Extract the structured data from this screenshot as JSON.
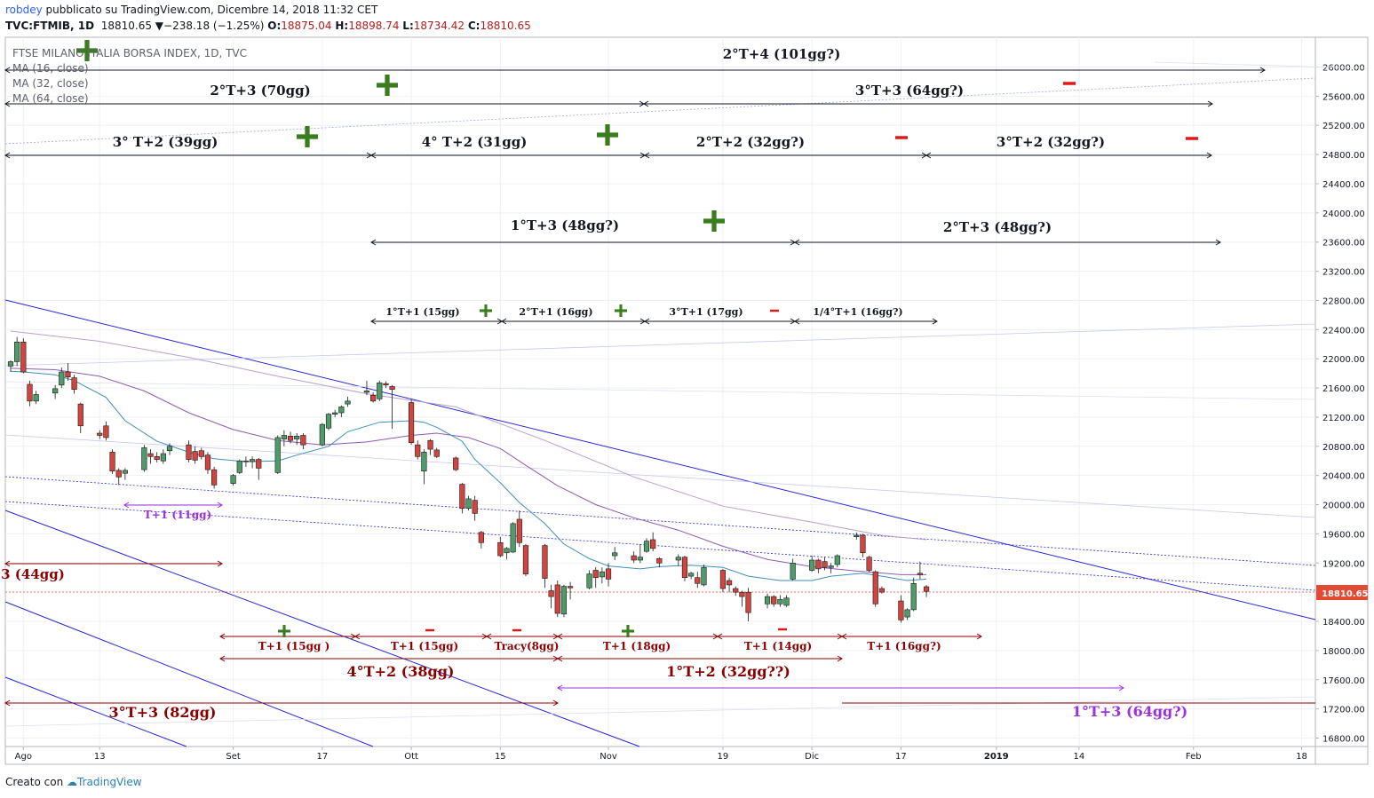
{
  "header": {
    "user": "robdey",
    "publish_text": " pubblicato su TradingView.com, Dicembre 14, 2018 11:32 CET",
    "symbol": "TVC:FTMIB, 1D",
    "last": "18810.65",
    "change_arrow": "▼",
    "change": "−238.18 (−1.25%)",
    "open_label": "O:",
    "open": "18875.04",
    "high_label": "H:",
    "high": "18898.74",
    "low_label": "L:",
    "low": "18734.42",
    "close_label": "C:",
    "close": "18810.65"
  },
  "legend": {
    "title": "FTSE MILANO ITALIA BORSA INDEX, 1D, TVC",
    "ma16": "MA (16, close)",
    "ma32": "MA (32, close)",
    "ma64": "MA (64, close)"
  },
  "footer": {
    "created_with": "Creato con",
    "brand": "TradingView"
  },
  "colors": {
    "up": "#4f9b6a",
    "down": "#d0453f",
    "ma16": "#3f8fb8",
    "ma32": "#8e5bb0",
    "ma64": "#b9a0c8",
    "channel": "#2727d6",
    "annotation_black": "#131722",
    "annotation_red": "#8b0000",
    "annotation_purple": "#9b30e0",
    "plus": "#3a7d1f",
    "minus": "#e01818",
    "price_badge": "#e24a34"
  },
  "chart_data": {
    "type": "candlestick",
    "title": "FTSE MILANO ITALIA BORSA INDEX, 1D, TVC",
    "ylim": [
      16700,
      26300
    ],
    "y_ticks": [
      "16800.00",
      "17200.00",
      "17600.00",
      "18000.00",
      "18400.00",
      "18800.00",
      "19200.00",
      "19600.00",
      "20000.00",
      "20400.00",
      "20800.00",
      "21200.00",
      "21600.00",
      "22000.00",
      "22400.00",
      "22800.00",
      "23200.00",
      "23600.00",
      "24000.00",
      "24400.00",
      "24800.00",
      "25200.00",
      "25600.00",
      "26000.00"
    ],
    "x_ticks": [
      {
        "d": "2018-08-01",
        "label": "Ago"
      },
      {
        "d": "2018-08-13",
        "label": "13"
      },
      {
        "d": "2018-09-03",
        "label": "Set"
      },
      {
        "d": "2018-09-17",
        "label": "17"
      },
      {
        "d": "2018-10-01",
        "label": "Ott"
      },
      {
        "d": "2018-10-15",
        "label": "15"
      },
      {
        "d": "2018-11-01",
        "label": "Nov"
      },
      {
        "d": "2018-11-19",
        "label": "19"
      },
      {
        "d": "2018-12-03",
        "label": "Dic"
      },
      {
        "d": "2018-12-17",
        "label": "17"
      },
      {
        "d": "2019-01-01",
        "label": "2019"
      },
      {
        "d": "2019-01-14",
        "label": "14"
      },
      {
        "d": "2019-02-01",
        "label": "Feb"
      },
      {
        "d": "2019-02-18",
        "label": "18"
      }
    ],
    "last_price": "18810.65",
    "ohlc": [
      [
        "2018-07-30",
        21900,
        21980,
        21820,
        21960
      ],
      [
        "2018-07-31",
        21960,
        22300,
        21900,
        22230
      ],
      [
        "2018-08-01",
        22230,
        22280,
        21800,
        21820
      ],
      [
        "2018-08-02",
        21650,
        21700,
        21350,
        21420
      ],
      [
        "2018-08-03",
        21420,
        21560,
        21380,
        21510
      ],
      [
        "2018-08-06",
        21530,
        21640,
        21450,
        21590
      ],
      [
        "2018-08-07",
        21640,
        21880,
        21600,
        21820
      ],
      [
        "2018-08-08",
        21820,
        21940,
        21700,
        21750
      ],
      [
        "2018-08-09",
        21740,
        21780,
        21520,
        21580
      ],
      [
        "2018-08-10",
        21380,
        21400,
        20980,
        21080
      ],
      [
        "2018-08-13",
        20980,
        21020,
        20900,
        20950
      ],
      [
        "2018-08-14",
        21080,
        21140,
        20880,
        20920
      ],
      [
        "2018-08-15",
        20720,
        20760,
        20420,
        20460
      ],
      [
        "2018-08-16",
        20470,
        20500,
        20270,
        20380
      ],
      [
        "2018-08-17",
        20430,
        20500,
        20340,
        20470
      ],
      [
        "2018-08-20",
        20480,
        20820,
        20450,
        20780
      ],
      [
        "2018-08-21",
        20700,
        20760,
        20560,
        20660
      ],
      [
        "2018-08-22",
        20660,
        20720,
        20580,
        20620
      ],
      [
        "2018-08-23",
        20600,
        20760,
        20560,
        20700
      ],
      [
        "2018-08-24",
        20740,
        20840,
        20680,
        20800
      ],
      [
        "2018-08-27",
        20820,
        20880,
        20580,
        20620
      ],
      [
        "2018-08-28",
        20730,
        20800,
        20560,
        20610
      ],
      [
        "2018-08-29",
        20740,
        20780,
        20620,
        20660
      ],
      [
        "2018-08-30",
        20680,
        20720,
        20420,
        20480
      ],
      [
        "2018-08-31",
        20480,
        20520,
        20220,
        20270
      ],
      [
        "2018-09-03",
        20290,
        20420,
        20260,
        20400
      ],
      [
        "2018-09-04",
        20440,
        20620,
        20420,
        20600
      ],
      [
        "2018-09-05",
        20600,
        20660,
        20520,
        20590
      ],
      [
        "2018-09-06",
        20590,
        20660,
        20500,
        20620
      ],
      [
        "2018-09-07",
        20620,
        20640,
        20340,
        20500
      ],
      [
        "2018-09-10",
        20440,
        20950,
        20420,
        20920
      ],
      [
        "2018-09-11",
        20900,
        21020,
        20800,
        20950
      ],
      [
        "2018-09-12",
        20940,
        21000,
        20840,
        20880
      ],
      [
        "2018-09-13",
        20900,
        20980,
        20820,
        20940
      ],
      [
        "2018-09-14",
        20950,
        20980,
        20760,
        20820
      ],
      [
        "2018-09-17",
        20820,
        21120,
        20800,
        21100
      ],
      [
        "2018-09-18",
        21050,
        21260,
        21020,
        21240
      ],
      [
        "2018-09-19",
        21240,
        21300,
        21200,
        21260
      ],
      [
        "2018-09-20",
        21260,
        21360,
        21200,
        21340
      ],
      [
        "2018-09-21",
        21380,
        21480,
        21340,
        21420
      ],
      [
        "2018-09-24",
        21540,
        21700,
        21500,
        21560
      ],
      [
        "2018-09-25",
        21500,
        21540,
        21400,
        21420
      ],
      [
        "2018-09-26",
        21450,
        21700,
        21420,
        21670
      ],
      [
        "2018-09-27",
        21660,
        21690,
        21600,
        21640
      ],
      [
        "2018-09-28",
        21620,
        21640,
        21040,
        21580
      ],
      [
        "2018-10-01",
        21400,
        21440,
        20820,
        20850
      ],
      [
        "2018-10-02",
        20820,
        20880,
        20620,
        20660
      ],
      [
        "2018-10-03",
        20460,
        20760,
        20280,
        20720
      ],
      [
        "2018-10-04",
        20880,
        20900,
        20680,
        20760
      ],
      [
        "2018-10-05",
        20750,
        20780,
        20640,
        20660
      ],
      [
        "2018-10-08",
        20640,
        20660,
        20460,
        20480
      ],
      [
        "2018-10-09",
        20280,
        20300,
        19880,
        19950
      ],
      [
        "2018-10-10",
        19950,
        20120,
        19920,
        20080
      ],
      [
        "2018-10-11",
        20060,
        20120,
        19780,
        19880
      ],
      [
        "2018-10-12",
        19620,
        19640,
        19400,
        19480
      ],
      [
        "2018-10-15",
        19480,
        19560,
        19280,
        19300
      ],
      [
        "2018-10-16",
        19340,
        19420,
        19250,
        19400
      ],
      [
        "2018-10-17",
        19350,
        19760,
        19340,
        19740
      ],
      [
        "2018-10-18",
        19800,
        19920,
        19420,
        19480
      ],
      [
        "2018-10-19",
        19440,
        19460,
        19020,
        19050
      ],
      [
        "2018-10-22",
        19440,
        19460,
        18860,
        18990
      ],
      [
        "2018-10-23",
        18820,
        18900,
        18580,
        18740
      ],
      [
        "2018-10-24",
        18900,
        18960,
        18460,
        18510
      ],
      [
        "2018-10-25",
        18500,
        18900,
        18460,
        18880
      ],
      [
        "2018-10-26",
        18880,
        18940,
        18700,
        18860
      ],
      [
        "2018-10-29",
        18860,
        19100,
        18840,
        19050
      ],
      [
        "2018-10-30",
        19100,
        19140,
        18860,
        19000
      ],
      [
        "2018-10-31",
        19010,
        19140,
        18920,
        19080
      ],
      [
        "2018-11-01",
        19120,
        19200,
        18880,
        18980
      ],
      [
        "2018-11-02",
        19300,
        19420,
        19240,
        19340
      ],
      [
        "2018-11-05",
        19300,
        19360,
        19200,
        19240
      ],
      [
        "2018-11-06",
        19240,
        19460,
        19200,
        19280
      ],
      [
        "2018-11-07",
        19360,
        19540,
        19340,
        19500
      ],
      [
        "2018-11-08",
        19520,
        19620,
        19360,
        19400
      ],
      [
        "2018-11-09",
        19260,
        19280,
        19140,
        19200
      ],
      [
        "2018-11-12",
        19240,
        19320,
        19160,
        19280
      ],
      [
        "2018-11-13",
        19280,
        19300,
        18950,
        19000
      ],
      [
        "2018-11-14",
        19020,
        19080,
        18980,
        19060
      ],
      [
        "2018-11-15",
        19000,
        19080,
        18860,
        18920
      ],
      [
        "2018-11-16",
        18900,
        19180,
        18880,
        19140
      ],
      [
        "2018-11-19",
        19100,
        19120,
        18800,
        18850
      ],
      [
        "2018-11-20",
        18960,
        19000,
        18800,
        18900
      ],
      [
        "2018-11-21",
        18850,
        18880,
        18750,
        18800
      ],
      [
        "2018-11-22",
        18800,
        18820,
        18600,
        18740
      ],
      [
        "2018-11-23",
        18800,
        18860,
        18400,
        18520
      ],
      [
        "2018-11-26",
        18640,
        18780,
        18580,
        18740
      ],
      [
        "2018-11-27",
        18740,
        18760,
        18600,
        18640
      ],
      [
        "2018-11-28",
        18640,
        18760,
        18600,
        18700
      ],
      [
        "2018-11-29",
        18620,
        18760,
        18600,
        18720
      ],
      [
        "2018-11-30",
        18980,
        19260,
        18960,
        19200
      ],
      [
        "2018-12-03",
        19100,
        19300,
        19080,
        19240
      ],
      [
        "2018-12-04",
        19240,
        19260,
        19060,
        19120
      ],
      [
        "2018-12-05",
        19220,
        19280,
        19100,
        19140
      ],
      [
        "2018-12-06",
        19140,
        19200,
        19060,
        19160
      ],
      [
        "2018-12-07",
        19180,
        19320,
        19140,
        19300
      ],
      [
        "2018-12-10",
        19560,
        19620,
        19520,
        19580
      ],
      [
        "2018-12-11",
        19580,
        19600,
        19280,
        19340
      ],
      [
        "2018-12-12",
        19280,
        19300,
        19080,
        19100
      ],
      [
        "2018-12-13",
        19080,
        19100,
        18600,
        18640
      ],
      [
        "2018-12-14",
        18850,
        18880,
        18780,
        18800
      ],
      [
        "2018-12-17",
        18680,
        18760,
        18380,
        18420
      ],
      [
        "2018-12-18",
        18460,
        18580,
        18420,
        18560
      ],
      [
        "2018-12-19",
        18560,
        19000,
        18540,
        18920
      ],
      [
        "2018-12-20",
        19060,
        19220,
        18980,
        19040
      ],
      [
        "2018-12-21",
        18875,
        18899,
        18734,
        18811
      ]
    ],
    "ma16": [
      [
        "2018-07-30",
        21830
      ],
      [
        "2018-08-01",
        21820
      ],
      [
        "2018-08-06",
        21780
      ],
      [
        "2018-08-09",
        21700
      ],
      [
        "2018-08-14",
        21470
      ],
      [
        "2018-08-17",
        21150
      ],
      [
        "2018-08-22",
        20870
      ],
      [
        "2018-08-27",
        20720
      ],
      [
        "2018-08-31",
        20630
      ],
      [
        "2018-09-05",
        20590
      ],
      [
        "2018-09-10",
        20600
      ],
      [
        "2018-09-13",
        20680
      ],
      [
        "2018-09-18",
        20800
      ],
      [
        "2018-09-21",
        21000
      ],
      [
        "2018-09-26",
        21130
      ],
      [
        "2018-10-01",
        21150
      ],
      [
        "2018-10-03",
        21130
      ],
      [
        "2018-10-05",
        21060
      ],
      [
        "2018-10-09",
        20870
      ],
      [
        "2018-10-11",
        20620
      ],
      [
        "2018-10-15",
        20300
      ],
      [
        "2018-10-18",
        20030
      ],
      [
        "2018-10-22",
        19740
      ],
      [
        "2018-10-25",
        19460
      ],
      [
        "2018-10-29",
        19260
      ],
      [
        "2018-11-01",
        19160
      ],
      [
        "2018-11-06",
        19120
      ],
      [
        "2018-11-09",
        19150
      ],
      [
        "2018-11-14",
        19170
      ],
      [
        "2018-11-19",
        19140
      ],
      [
        "2018-11-23",
        19020
      ],
      [
        "2018-11-28",
        18960
      ],
      [
        "2018-12-03",
        18960
      ],
      [
        "2018-12-06",
        19020
      ],
      [
        "2018-12-11",
        19060
      ],
      [
        "2018-12-14",
        19020
      ],
      [
        "2018-12-18",
        18960
      ],
      [
        "2018-12-21",
        18980
      ]
    ],
    "ma32": [
      [
        "2018-07-30",
        21870
      ],
      [
        "2018-08-06",
        21850
      ],
      [
        "2018-08-13",
        21760
      ],
      [
        "2018-08-20",
        21560
      ],
      [
        "2018-08-27",
        21260
      ],
      [
        "2018-09-03",
        21030
      ],
      [
        "2018-09-10",
        20880
      ],
      [
        "2018-09-17",
        20820
      ],
      [
        "2018-09-24",
        20860
      ],
      [
        "2018-10-01",
        20950
      ],
      [
        "2018-10-05",
        20980
      ],
      [
        "2018-10-10",
        20920
      ],
      [
        "2018-10-15",
        20770
      ],
      [
        "2018-10-19",
        20540
      ],
      [
        "2018-10-24",
        20260
      ],
      [
        "2018-10-30",
        20000
      ],
      [
        "2018-11-05",
        19820
      ],
      [
        "2018-11-12",
        19650
      ],
      [
        "2018-11-19",
        19430
      ],
      [
        "2018-11-26",
        19250
      ],
      [
        "2018-12-03",
        19150
      ],
      [
        "2018-12-10",
        19090
      ],
      [
        "2018-12-17",
        19040
      ],
      [
        "2018-12-21",
        19040
      ]
    ],
    "ma64": [
      [
        "2018-07-30",
        22380
      ],
      [
        "2018-08-13",
        22240
      ],
      [
        "2018-08-27",
        22020
      ],
      [
        "2018-09-10",
        21760
      ],
      [
        "2018-09-24",
        21520
      ],
      [
        "2018-10-08",
        21340
      ],
      [
        "2018-10-22",
        20880
      ],
      [
        "2018-11-05",
        20380
      ],
      [
        "2018-11-19",
        19980
      ],
      [
        "2018-12-03",
        19760
      ],
      [
        "2018-12-14",
        19580
      ],
      [
        "2018-12-21",
        19520
      ]
    ],
    "annotations": {
      "black_rows": [
        {
          "text": "2°T+4 (101gg?)"
        },
        {
          "text": "2°T+3 (70gg)"
        },
        {
          "text": "3°T+3 (64gg?)"
        },
        {
          "text": "3° T+2 (39gg)"
        },
        {
          "text": "4° T+2 (31gg)"
        },
        {
          "text": "2°T+2 (32gg?)"
        },
        {
          "text": "3°T+2 (32gg?)"
        },
        {
          "text": "1°T+3 (48gg?)"
        },
        {
          "text": "2°T+3 (48gg?)"
        },
        {
          "text": "1°T+1 (15gg)"
        },
        {
          "text": "2°T+1 (16gg)"
        },
        {
          "text": "3°T+1 (17gg)"
        },
        {
          "text": "1/4°T+1 (16gg?)"
        }
      ],
      "red_rows": [
        {
          "text": "3 (44gg)"
        },
        {
          "text": "T+1 (15gg )"
        },
        {
          "text": "T+1 (15gg)"
        },
        {
          "text": "Tracy(8gg)"
        },
        {
          "text": "T+1 (18gg)"
        },
        {
          "text": "T+1 (14gg)"
        },
        {
          "text": "T+1 (16gg?)"
        },
        {
          "text": "4°T+2 (38gg)"
        },
        {
          "text": "1°T+2 (32gg??)"
        },
        {
          "text": "3°T+3 (82gg)"
        }
      ],
      "purple_rows": [
        {
          "text": "T+1 (11gg)"
        },
        {
          "text": "1°T+3 (64gg?)"
        }
      ]
    }
  }
}
